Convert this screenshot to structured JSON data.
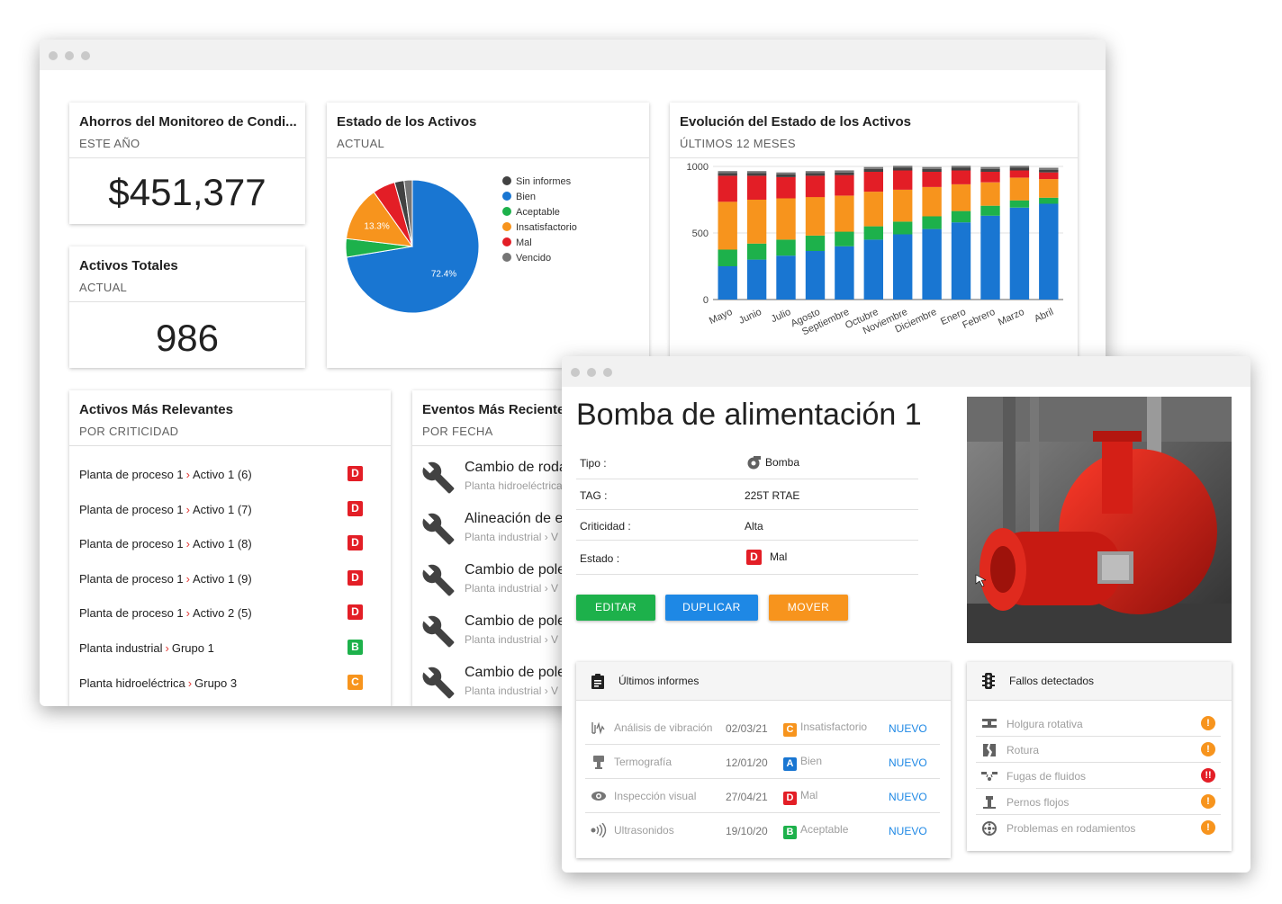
{
  "colors": {
    "sin_informes": "#424242",
    "bien": "#1976d2",
    "aceptable": "#1db14b",
    "insatisfactorio": "#f7941d",
    "mal": "#e31e26",
    "vencido": "#757575",
    "btn_editar": "#1db14b",
    "btn_duplicar": "#1e88e5",
    "btn_mover": "#f7941d"
  },
  "dashboard": {
    "savings": {
      "title": "Ahorros del Monitoreo de Condi...",
      "subtitle": "ESTE AÑO",
      "value": "$451,377"
    },
    "total": {
      "title": "Activos Totales",
      "subtitle": "ACTUAL",
      "value": "986"
    },
    "status": {
      "title": "Estado de los Activos",
      "subtitle": "ACTUAL",
      "legend": [
        "Sin informes",
        "Bien",
        "Aceptable",
        "Insatisfactorio",
        "Mal",
        "Vencido"
      ]
    },
    "evolution": {
      "title": "Evolución del Estado de los Activos",
      "subtitle": "ÚLTIMOS 12 MESES"
    },
    "relevant": {
      "title": "Activos Más Relevantes",
      "subtitle": "POR CRITICIDAD",
      "rows": [
        {
          "parent": "Planta de proceso 1",
          "name": "Activo 1 (6)",
          "grade": "D",
          "color": "#e31e26"
        },
        {
          "parent": "Planta de proceso 1",
          "name": "Activo 1 (7)",
          "grade": "D",
          "color": "#e31e26"
        },
        {
          "parent": "Planta de proceso 1",
          "name": "Activo 1 (8)",
          "grade": "D",
          "color": "#e31e26"
        },
        {
          "parent": "Planta de proceso 1",
          "name": "Activo 1 (9)",
          "grade": "D",
          "color": "#e31e26"
        },
        {
          "parent": "Planta de proceso 1",
          "name": "Activo 2 (5)",
          "grade": "D",
          "color": "#e31e26"
        },
        {
          "parent": "Planta industrial",
          "name": "Grupo 1",
          "grade": "B",
          "color": "#1db14b"
        },
        {
          "parent": "Planta hidroeléctrica",
          "name": "Grupo 3",
          "grade": "C",
          "color": "#f7941d"
        }
      ]
    },
    "events": {
      "title": "Eventos Más Recientes",
      "subtitle": "POR FECHA",
      "rows": [
        {
          "title": "Cambio de rodamientos",
          "sub": "Planta hidroeléctrica"
        },
        {
          "title": "Alineación de ejes",
          "sub": "Planta industrial › V"
        },
        {
          "title": "Cambio de poleas",
          "sub": "Planta industrial › V"
        },
        {
          "title": "Cambio de poleas",
          "sub": "Planta industrial › V"
        },
        {
          "title": "Cambio de poleas",
          "sub": "Planta industrial › V"
        }
      ]
    }
  },
  "chart_data": [
    {
      "type": "pie",
      "categories": [
        "Bien",
        "Aceptable",
        "Insatisfactorio",
        "Mal",
        "Sin informes",
        "Vencido"
      ],
      "values": [
        72.4,
        4.5,
        13.3,
        5.5,
        2.3,
        2.0
      ],
      "data_labels": [
        "72.4%",
        "",
        "13.3%",
        "",
        "",
        ""
      ],
      "legend": "right"
    },
    {
      "type": "bar",
      "stacked": true,
      "categories": [
        "Mayo",
        "Junio",
        "Julio",
        "Agosto",
        "Septiembre",
        "Octubre",
        "Noviembre",
        "Diciembre",
        "Enero",
        "Febrero",
        "Marzo",
        "Abril"
      ],
      "series": [
        {
          "name": "Bien",
          "values": [
            250,
            300,
            330,
            365,
            400,
            450,
            490,
            530,
            580,
            630,
            690,
            720
          ]
        },
        {
          "name": "Aceptable",
          "values": [
            125,
            120,
            120,
            115,
            110,
            100,
            95,
            95,
            85,
            75,
            55,
            45
          ]
        },
        {
          "name": "Insatisfactorio",
          "values": [
            360,
            330,
            310,
            290,
            270,
            260,
            240,
            220,
            200,
            175,
            170,
            140
          ]
        },
        {
          "name": "Mal",
          "values": [
            195,
            180,
            160,
            160,
            155,
            150,
            145,
            115,
            105,
            80,
            55,
            50
          ]
        },
        {
          "name": "Sin informes",
          "values": [
            20,
            20,
            20,
            20,
            20,
            20,
            20,
            20,
            20,
            20,
            20,
            20
          ]
        },
        {
          "name": "Vencido",
          "values": [
            15,
            15,
            15,
            15,
            15,
            15,
            15,
            15,
            15,
            15,
            15,
            15
          ]
        }
      ],
      "yticks": [
        "0",
        "500",
        "1000"
      ],
      "ylim": [
        0,
        1000
      ],
      "grid": true
    }
  ],
  "detail": {
    "title": "Bomba de alimentación 1",
    "fields": [
      {
        "label": "Tipo :",
        "value": "Bomba"
      },
      {
        "label": "TAG :",
        "value": "225T RTAE"
      },
      {
        "label": "Criticidad :",
        "value": "Alta"
      },
      {
        "label": "Estado :",
        "value": "Mal",
        "grade": "D"
      }
    ],
    "buttons": {
      "edit": "EDITAR",
      "duplicate": "DUPLICAR",
      "move": "MOVER"
    },
    "reports": {
      "title": "Últimos informes",
      "rows": [
        {
          "icon": "vibration-icon",
          "name": "Análisis de vibración",
          "date": "02/03/21",
          "grade": "C",
          "grade_color": "#f7941d",
          "status": "Insatisfactorio",
          "tag": "NUEVO"
        },
        {
          "icon": "thermography-icon",
          "name": "Termografía",
          "date": "12/01/20",
          "grade": "A",
          "grade_color": "#1976d2",
          "status": "Bien",
          "tag": "NUEVO"
        },
        {
          "icon": "eye-icon",
          "name": "Inspección visual",
          "date": "27/04/21",
          "grade": "D",
          "grade_color": "#e31e26",
          "status": "Mal",
          "tag": "NUEVO"
        },
        {
          "icon": "ultrasound-icon",
          "name": "Ultrasonidos",
          "date": "19/10/20",
          "grade": "B",
          "grade_color": "#1db14b",
          "status": "Aceptable",
          "tag": "NUEVO"
        }
      ]
    },
    "faults": {
      "title": "Fallos detectados",
      "rows": [
        {
          "icon": "rotating-looseness-icon",
          "name": "Holgura rotativa",
          "mark": "!",
          "color": "#f7941d"
        },
        {
          "icon": "breakage-icon",
          "name": "Rotura",
          "mark": "!",
          "color": "#f7941d"
        },
        {
          "icon": "fluid-leak-icon",
          "name": "Fugas de fluidos",
          "mark": "!!",
          "color": "#e31e26"
        },
        {
          "icon": "loose-bolt-icon",
          "name": "Pernos flojos",
          "mark": "!",
          "color": "#f7941d"
        },
        {
          "icon": "bearing-icon",
          "name": "Problemas en rodamientos",
          "mark": "!",
          "color": "#f7941d"
        }
      ]
    }
  }
}
